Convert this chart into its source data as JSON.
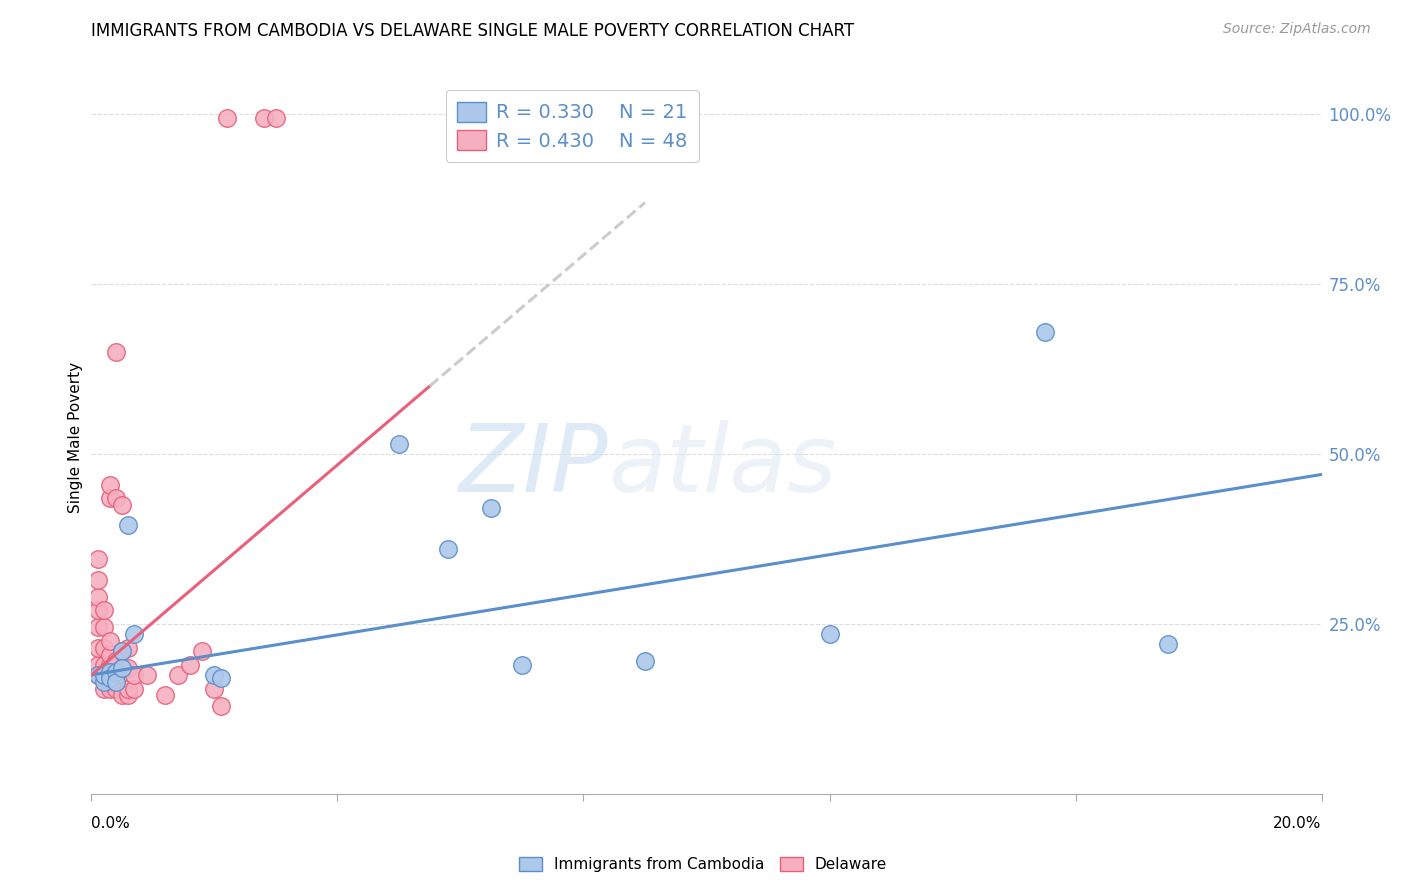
{
  "title": "IMMIGRANTS FROM CAMBODIA VS DELAWARE SINGLE MALE POVERTY CORRELATION CHART",
  "source": "Source: ZipAtlas.com",
  "ylabel": "Single Male Poverty",
  "legend1_label": "Immigrants from Cambodia",
  "legend2_label": "Delaware",
  "r1": 0.33,
  "n1": 21,
  "r2": 0.43,
  "n2": 48,
  "color_blue": "#adc8ea",
  "color_pink": "#f5afc0",
  "line_blue": "#5b8fc9",
  "line_pink": "#e8607a",
  "watermark_zip": "ZIP",
  "watermark_atlas": "atlas",
  "xlim": [
    0.0,
    0.2
  ],
  "ylim": [
    0.0,
    1.05
  ],
  "blue_line": [
    [
      0.0,
      0.175
    ],
    [
      0.2,
      0.47
    ]
  ],
  "pink_line_solid": [
    [
      0.0,
      0.175
    ],
    [
      0.055,
      0.6
    ]
  ],
  "pink_line_dash": [
    [
      0.055,
      0.6
    ],
    [
      0.09,
      0.87
    ]
  ],
  "blue_dots": [
    [
      0.001,
      0.175
    ],
    [
      0.002,
      0.165
    ],
    [
      0.002,
      0.175
    ],
    [
      0.003,
      0.18
    ],
    [
      0.003,
      0.17
    ],
    [
      0.004,
      0.18
    ],
    [
      0.004,
      0.165
    ],
    [
      0.005,
      0.21
    ],
    [
      0.005,
      0.185
    ],
    [
      0.006,
      0.395
    ],
    [
      0.007,
      0.235
    ],
    [
      0.02,
      0.175
    ],
    [
      0.021,
      0.17
    ],
    [
      0.05,
      0.515
    ],
    [
      0.058,
      0.36
    ],
    [
      0.065,
      0.42
    ],
    [
      0.07,
      0.19
    ],
    [
      0.09,
      0.195
    ],
    [
      0.12,
      0.235
    ],
    [
      0.155,
      0.68
    ],
    [
      0.175,
      0.22
    ]
  ],
  "pink_dots": [
    [
      0.001,
      0.175
    ],
    [
      0.001,
      0.19
    ],
    [
      0.001,
      0.215
    ],
    [
      0.001,
      0.245
    ],
    [
      0.001,
      0.27
    ],
    [
      0.001,
      0.29
    ],
    [
      0.001,
      0.315
    ],
    [
      0.001,
      0.345
    ],
    [
      0.002,
      0.155
    ],
    [
      0.002,
      0.17
    ],
    [
      0.002,
      0.19
    ],
    [
      0.002,
      0.215
    ],
    [
      0.002,
      0.245
    ],
    [
      0.002,
      0.27
    ],
    [
      0.003,
      0.155
    ],
    [
      0.003,
      0.165
    ],
    [
      0.003,
      0.18
    ],
    [
      0.003,
      0.19
    ],
    [
      0.003,
      0.205
    ],
    [
      0.003,
      0.225
    ],
    [
      0.003,
      0.435
    ],
    [
      0.003,
      0.455
    ],
    [
      0.004,
      0.155
    ],
    [
      0.004,
      0.165
    ],
    [
      0.004,
      0.175
    ],
    [
      0.004,
      0.195
    ],
    [
      0.004,
      0.435
    ],
    [
      0.004,
      0.65
    ],
    [
      0.005,
      0.145
    ],
    [
      0.005,
      0.185
    ],
    [
      0.005,
      0.21
    ],
    [
      0.005,
      0.425
    ],
    [
      0.006,
      0.145
    ],
    [
      0.006,
      0.155
    ],
    [
      0.006,
      0.185
    ],
    [
      0.006,
      0.215
    ],
    [
      0.007,
      0.155
    ],
    [
      0.007,
      0.175
    ],
    [
      0.009,
      0.175
    ],
    [
      0.012,
      0.145
    ],
    [
      0.014,
      0.175
    ],
    [
      0.016,
      0.19
    ],
    [
      0.018,
      0.21
    ],
    [
      0.02,
      0.155
    ],
    [
      0.021,
      0.13
    ],
    [
      0.022,
      0.995
    ],
    [
      0.028,
      0.995
    ],
    [
      0.03,
      0.995
    ]
  ]
}
